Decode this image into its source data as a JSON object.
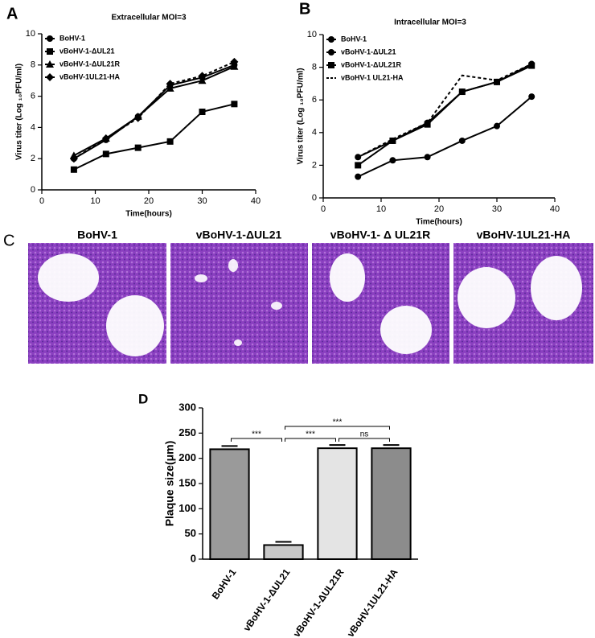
{
  "chart_data": [
    {
      "type": "line",
      "panel": "A",
      "title": "Extracellular MOI=3",
      "x_label": "Time(hours)",
      "y_label": "Virus titer (Log ₁₀PFU/ml)",
      "x": [
        6,
        12,
        18,
        24,
        30,
        36
      ],
      "xlim": [
        0,
        40
      ],
      "xticks": [
        0,
        10,
        20,
        30,
        40
      ],
      "ylim": [
        0,
        10
      ],
      "yticks": [
        0,
        2,
        4,
        6,
        8,
        10
      ],
      "series": [
        {
          "name": "BoHV-1",
          "color": "#000000",
          "marker": "circle",
          "dashed": false,
          "values": [
            2.0,
            3.2,
            4.7,
            6.7,
            7.2,
            8.0
          ]
        },
        {
          "name": "vBoHV-1-ΔUL21",
          "color": "#000000",
          "marker": "square",
          "dashed": false,
          "values": [
            1.3,
            2.3,
            2.7,
            3.1,
            5.0,
            5.5
          ]
        },
        {
          "name": "vBoHV-1-ΔUL21R",
          "color": "#000000",
          "marker": "triangle",
          "dashed": false,
          "values": [
            2.2,
            3.3,
            4.7,
            6.5,
            7.0,
            7.9
          ]
        },
        {
          "name": "vBoHV-1UL21-HA",
          "color": "#000000",
          "marker": "diamond",
          "dashed": true,
          "values": [
            2.0,
            3.3,
            4.6,
            6.8,
            7.3,
            8.2
          ]
        }
      ]
    },
    {
      "type": "line",
      "panel": "B",
      "title": "Intracellular MOI=3",
      "x_label": "Time(hours)",
      "y_label": "Virus titer (Log ₁₀PFU/ml)",
      "x": [
        6,
        12,
        18,
        24,
        30,
        36
      ],
      "xlim": [
        0,
        40
      ],
      "xticks": [
        0,
        10,
        20,
        30,
        40
      ],
      "ylim": [
        0,
        10
      ],
      "yticks": [
        0,
        2,
        4,
        6,
        8,
        10
      ],
      "series": [
        {
          "name": "BoHV-1",
          "color": "#000000",
          "marker": "circle",
          "dashed": false,
          "values": [
            2.5,
            3.5,
            4.6,
            6.5,
            7.1,
            8.2
          ]
        },
        {
          "name": "vBoHV-1-ΔUL21",
          "color": "#000000",
          "marker": "circle",
          "dashed": false,
          "values": [
            1.3,
            2.3,
            2.5,
            3.5,
            4.4,
            6.2
          ]
        },
        {
          "name": "vBoHV-1-ΔUL21R",
          "color": "#000000",
          "marker": "square",
          "dashed": false,
          "values": [
            2.0,
            3.5,
            4.5,
            6.5,
            7.1,
            8.1
          ]
        },
        {
          "name": "vBoHV-1 UL21-HA",
          "color": "#000000",
          "marker": "none",
          "dashed": true,
          "values": [
            2.5,
            3.6,
            4.6,
            7.5,
            7.2,
            8.2
          ]
        }
      ]
    },
    {
      "type": "bar",
      "panel": "D",
      "y_label": "Plaque size(μm)",
      "categories": [
        "BoHV-1",
        "vBoHV-1-ΔUL21",
        "vBoHV-1-ΔUL21R",
        "vBoHV-1UL21-HA"
      ],
      "values": [
        218,
        28,
        220,
        220
      ],
      "colors": [
        "#9a9a9a",
        "#c8c8c8",
        "#e4e4e4",
        "#8c8c8c"
      ],
      "ylim": [
        0,
        300
      ],
      "yticks": [
        0,
        50,
        100,
        150,
        200,
        250,
        300
      ],
      "annotations": [
        "***",
        "***",
        "***",
        "ns"
      ]
    }
  ],
  "panel_c": {
    "panel": "C",
    "labels": [
      "BoHV-1",
      "vBoHV-1-ΔUL21",
      "vBoHV-1- Δ UL21R",
      "vBoHV-1UL21-HA"
    ]
  }
}
